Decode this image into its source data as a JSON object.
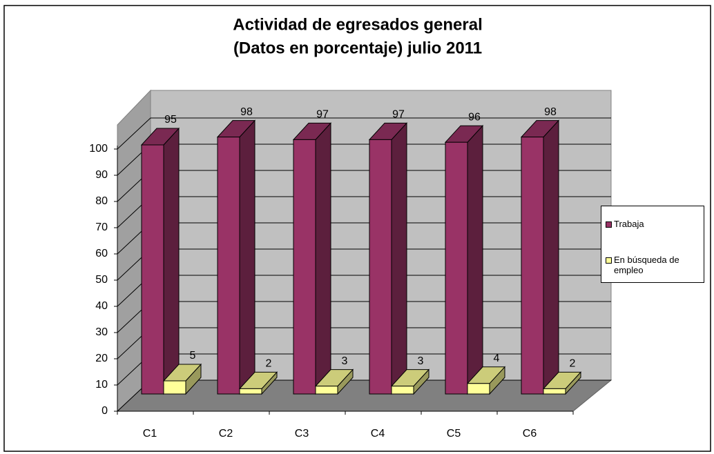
{
  "chart_data": {
    "type": "bar3d",
    "title": "Actividad de egresados general",
    "subtitle": "(Datos en porcentaje) julio 2011",
    "categories": [
      "C1",
      "C2",
      "C3",
      "C4",
      "C5",
      "C6"
    ],
    "series": [
      {
        "name": "Trabaja",
        "color": "#993366",
        "values": [
          95,
          98,
          97,
          97,
          96,
          98
        ]
      },
      {
        "name": "En búsqueda de empleo",
        "color": "#ffff99",
        "values": [
          5,
          2,
          3,
          3,
          4,
          2
        ]
      }
    ],
    "ylim": [
      0,
      100
    ],
    "yticks": [
      0,
      10,
      20,
      30,
      40,
      50,
      60,
      70,
      80,
      90,
      100
    ],
    "grid": true,
    "legend": "right"
  }
}
